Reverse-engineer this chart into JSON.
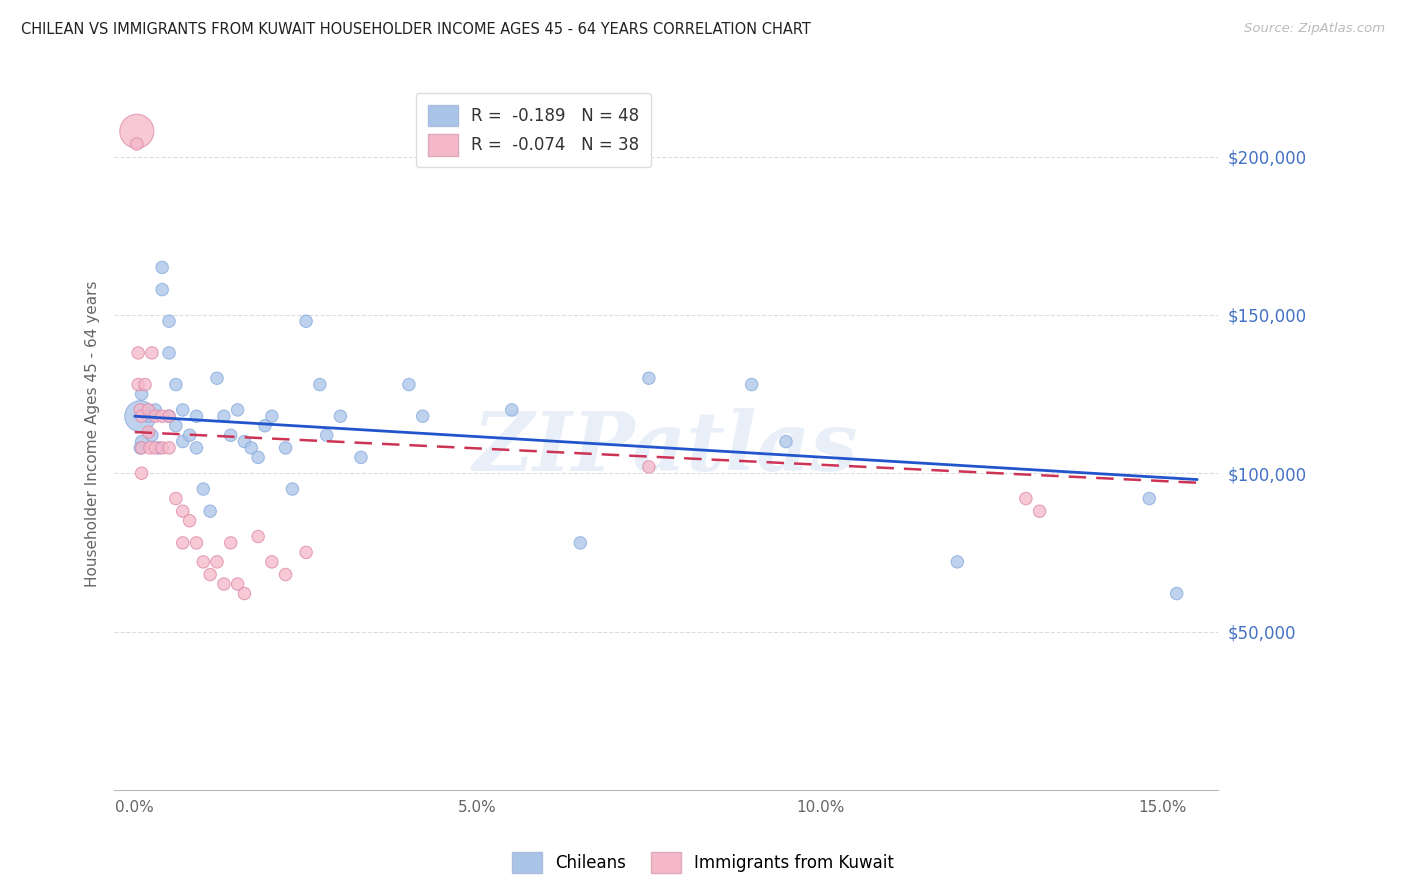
{
  "title": "CHILEAN VS IMMIGRANTS FROM KUWAIT HOUSEHOLDER INCOME AGES 45 - 64 YEARS CORRELATION CHART",
  "source": "Source: ZipAtlas.com",
  "ylabel": "Householder Income Ages 45 - 64 years",
  "xlabel_ticks": [
    "0.0%",
    "5.0%",
    "10.0%",
    "15.0%"
  ],
  "xlabel_values": [
    0.0,
    0.05,
    0.1,
    0.15
  ],
  "ytick_labels": [
    "$50,000",
    "$100,000",
    "$150,000",
    "$200,000"
  ],
  "ytick_values": [
    50000,
    100000,
    150000,
    200000
  ],
  "ylim": [
    0,
    225000
  ],
  "xlim": [
    -0.003,
    0.158
  ],
  "blue_color": "#aac4e8",
  "pink_color": "#f5b8c8",
  "blue_line_color": "#2255cc",
  "pink_line_color": "#cc3355",
  "watermark": "ZIPatlas",
  "legend_r_blue": "R =  -0.189",
  "legend_n_blue": "N = 48",
  "legend_r_pink": "R =  -0.074",
  "legend_n_pink": "N = 38",
  "chileans_label": "Chileans",
  "kuwait_label": "Immigrants from Kuwait",
  "blue_line_x0": 0.0,
  "blue_line_y0": 118000,
  "blue_line_x1": 0.155,
  "blue_line_y1": 98000,
  "pink_line_x0": 0.0,
  "pink_line_y0": 113000,
  "pink_line_x1": 0.155,
  "pink_line_y1": 97000,
  "blue_points_x": [
    0.0008,
    0.0008,
    0.001,
    0.001,
    0.002,
    0.0025,
    0.003,
    0.0035,
    0.004,
    0.004,
    0.005,
    0.005,
    0.005,
    0.006,
    0.006,
    0.007,
    0.007,
    0.008,
    0.009,
    0.009,
    0.01,
    0.011,
    0.012,
    0.013,
    0.014,
    0.015,
    0.016,
    0.017,
    0.018,
    0.019,
    0.02,
    0.022,
    0.023,
    0.025,
    0.027,
    0.028,
    0.03,
    0.033,
    0.04,
    0.042,
    0.055,
    0.065,
    0.075,
    0.09,
    0.095,
    0.12,
    0.148,
    0.152
  ],
  "blue_points_y": [
    118000,
    108000,
    125000,
    110000,
    118000,
    112000,
    120000,
    108000,
    165000,
    158000,
    148000,
    138000,
    118000,
    128000,
    115000,
    120000,
    110000,
    112000,
    108000,
    118000,
    95000,
    88000,
    130000,
    118000,
    112000,
    120000,
    110000,
    108000,
    105000,
    115000,
    118000,
    108000,
    95000,
    148000,
    128000,
    112000,
    118000,
    105000,
    128000,
    118000,
    120000,
    78000,
    130000,
    128000,
    110000,
    72000,
    92000,
    62000
  ],
  "blue_points_size": [
    80,
    80,
    80,
    80,
    80,
    80,
    80,
    80,
    80,
    80,
    80,
    80,
    80,
    80,
    80,
    80,
    80,
    80,
    80,
    80,
    80,
    80,
    80,
    80,
    80,
    80,
    80,
    80,
    80,
    80,
    80,
    80,
    80,
    80,
    80,
    80,
    80,
    80,
    80,
    80,
    80,
    80,
    80,
    80,
    80,
    80,
    80,
    80
  ],
  "pink_points_x": [
    0.0003,
    0.0003,
    0.0005,
    0.0005,
    0.0008,
    0.001,
    0.001,
    0.001,
    0.0015,
    0.002,
    0.002,
    0.0022,
    0.0025,
    0.003,
    0.003,
    0.004,
    0.004,
    0.005,
    0.005,
    0.006,
    0.007,
    0.007,
    0.008,
    0.009,
    0.01,
    0.011,
    0.012,
    0.013,
    0.014,
    0.015,
    0.016,
    0.018,
    0.02,
    0.022,
    0.025,
    0.075,
    0.13,
    0.132
  ],
  "pink_points_y": [
    208000,
    204000,
    138000,
    128000,
    120000,
    118000,
    108000,
    100000,
    128000,
    120000,
    113000,
    108000,
    138000,
    118000,
    108000,
    118000,
    108000,
    118000,
    108000,
    92000,
    88000,
    78000,
    85000,
    78000,
    72000,
    68000,
    72000,
    65000,
    78000,
    65000,
    62000,
    80000,
    72000,
    68000,
    75000,
    102000,
    92000,
    88000
  ],
  "pink_points_size_large_idx": 0,
  "large_bubble_size": 600
}
